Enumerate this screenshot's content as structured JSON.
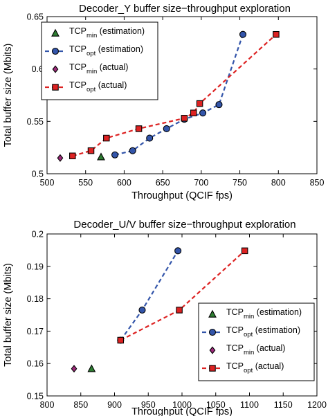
{
  "chart_data": [
    {
      "type": "line",
      "title": "Decoder_Y buffer size−throughput exploration",
      "xlabel": "Throughput (QCIF fps)",
      "ylabel": "Total buffer size (Mbits)",
      "xlim": [
        500,
        850
      ],
      "ylim": [
        0.5,
        0.65
      ],
      "xticks": [
        "500",
        "550",
        "600",
        "650",
        "700",
        "750",
        "800",
        "850"
      ],
      "yticks": [
        "0.5",
        "0.55",
        "0.6",
        "0.65"
      ],
      "legend_position": "top-left",
      "series": [
        {
          "name": "TCP",
          "sub": "min",
          "suffix": "(estimation)",
          "style": "marker",
          "marker": "triangle",
          "color": "#2e7d32",
          "points": [
            [
              570,
              0.516
            ]
          ]
        },
        {
          "name": "TCP",
          "sub": "opt",
          "suffix": "(estimation)",
          "style": "line",
          "marker": "circle",
          "color": "#3355aa",
          "points": [
            [
              588,
              0.518
            ],
            [
              611,
              0.522
            ],
            [
              633,
              0.534
            ],
            [
              655,
              0.543
            ],
            [
              678,
              0.552
            ],
            [
              702,
              0.558
            ],
            [
              723,
              0.566
            ],
            [
              754,
              0.633
            ]
          ]
        },
        {
          "name": "TCP",
          "sub": "min",
          "suffix": "(actual)",
          "style": "marker",
          "marker": "diamond",
          "color": "#9c2a7a",
          "points": [
            [
              517,
              0.515
            ]
          ]
        },
        {
          "name": "TCP",
          "sub": "opt",
          "suffix": "(actual)",
          "style": "line",
          "marker": "square",
          "color": "#dd2222",
          "points": [
            [
              533,
              0.517
            ],
            [
              557,
              0.522
            ],
            [
              577,
              0.534
            ],
            [
              619,
              0.543
            ],
            [
              678,
              0.553
            ],
            [
              690,
              0.558
            ],
            [
              698,
              0.567
            ],
            [
              797,
              0.633
            ]
          ]
        }
      ]
    },
    {
      "type": "line",
      "title": "Decoder_U/V buffer size−throughput exploration",
      "xlabel": "Throughput (QCIF fps)",
      "ylabel": "Total buffer size (Mbits)",
      "xlim": [
        800,
        1200
      ],
      "ylim": [
        0.15,
        0.2
      ],
      "xticks": [
        "800",
        "850",
        "900",
        "950",
        "1000",
        "1050",
        "1100",
        "1150",
        "1200"
      ],
      "yticks": [
        "0.15",
        "0.16",
        "0.17",
        "0.18",
        "0.19",
        "0.2"
      ],
      "legend_position": "bottom-right",
      "series": [
        {
          "name": "TCP",
          "sub": "min",
          "suffix": "(estimation)",
          "style": "marker",
          "marker": "triangle",
          "color": "#2e7d32",
          "points": [
            [
              866,
              0.1584
            ]
          ]
        },
        {
          "name": "TCP",
          "sub": "opt",
          "suffix": "(estimation)",
          "style": "line",
          "marker": "circle",
          "color": "#3355aa",
          "points": [
            [
              909,
              0.1672
            ],
            [
              941,
              0.1765
            ],
            [
              994,
              0.1948
            ]
          ]
        },
        {
          "name": "TCP",
          "sub": "min",
          "suffix": "(actual)",
          "style": "marker",
          "marker": "diamond",
          "color": "#9c2a7a",
          "points": [
            [
              840,
              0.1584
            ]
          ]
        },
        {
          "name": "TCP",
          "sub": "opt",
          "suffix": "(actual)",
          "style": "line",
          "marker": "square",
          "color": "#dd2222",
          "points": [
            [
              909,
              0.1672
            ],
            [
              996,
              0.1765
            ],
            [
              1093,
              0.1948
            ]
          ]
        }
      ]
    }
  ]
}
